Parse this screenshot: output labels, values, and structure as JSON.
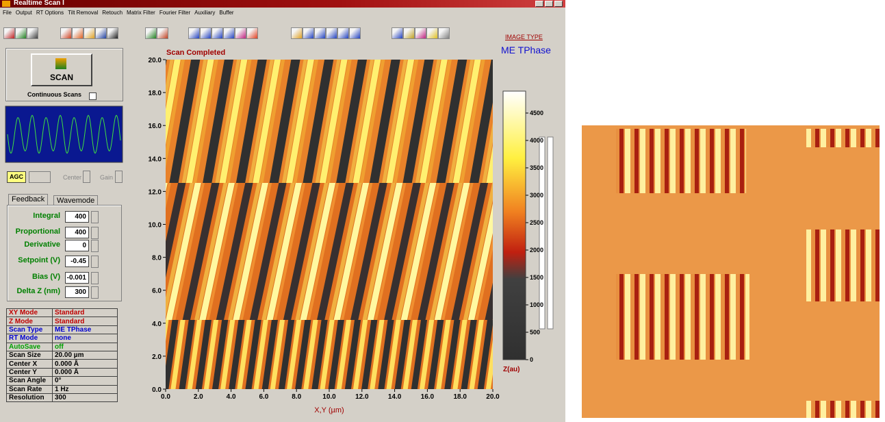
{
  "window": {
    "title": "Realtime Scan I",
    "menu": [
      "File",
      "Output",
      "RT Options",
      "Tilt Removal",
      "Retouch",
      "Matrix Filter",
      "Fourier Filter",
      "Auxiliary",
      "Buffer"
    ]
  },
  "toolbar": {
    "image_type_label": "IMAGE TYPE",
    "image_type": "ME TPhase"
  },
  "scan_panel": {
    "button": "SCAN",
    "continuous": "Continuous Scans"
  },
  "scope": {
    "agc": "AGC",
    "center": "Center",
    "gain": "Gain"
  },
  "feedback": {
    "tabs": [
      "Feedback",
      "Wavemode"
    ],
    "params": [
      {
        "label": "Integral",
        "value": "400"
      },
      {
        "label": "Proportional",
        "value": "400"
      },
      {
        "label": "Derivative",
        "value": "0"
      },
      {
        "label": "Setpoint (V)",
        "value": "-0.45"
      },
      {
        "label": "Bias (V)",
        "value": "-0.001"
      },
      {
        "label": "Delta Z (nm)",
        "value": "300"
      }
    ]
  },
  "status_table": {
    "rows": [
      [
        "XY Mode",
        "Standard"
      ],
      [
        "Z Mode",
        "Standard"
      ],
      [
        "Scan Type",
        "ME TPhase"
      ],
      [
        "RT Mode",
        "none"
      ],
      [
        "AutoSave",
        "off"
      ],
      [
        "Scan Size",
        "20.00 µm"
      ],
      [
        "Center X",
        "0.000  Å"
      ],
      [
        "Center Y",
        "0.000  Å"
      ],
      [
        "Scan Angle",
        "0°"
      ],
      [
        "Scan Rate",
        "1 Hz"
      ],
      [
        "Resolution",
        "300"
      ]
    ]
  },
  "chart_data": {
    "type": "heatmap",
    "title": "Scan Completed",
    "x_label": "X,Y (µm)",
    "xlim": [
      0,
      20
    ],
    "ylim": [
      0,
      20
    ],
    "xticks": [
      {
        "value": 0,
        "label": "0.0"
      },
      {
        "value": 2,
        "label": "2.0"
      },
      {
        "value": 4,
        "label": "4.0"
      },
      {
        "value": 6,
        "label": "6.0"
      },
      {
        "value": 8,
        "label": "8.0"
      },
      {
        "value": 10,
        "label": "10.0"
      },
      {
        "value": 12,
        "label": "12.0"
      },
      {
        "value": 14,
        "label": "14.0"
      },
      {
        "value": 16,
        "label": "16.0"
      },
      {
        "value": 18,
        "label": "18.0"
      },
      {
        "value": 20,
        "label": "20.0"
      }
    ],
    "yticks": [
      {
        "value": 0,
        "label": "0.0"
      },
      {
        "value": 2,
        "label": "2.0"
      },
      {
        "value": 4,
        "label": "4.0"
      },
      {
        "value": 6,
        "label": "6.0"
      },
      {
        "value": 8,
        "label": "8.0"
      },
      {
        "value": 10,
        "label": "10.0"
      },
      {
        "value": 12,
        "label": "12.0"
      },
      {
        "value": 14,
        "label": "14.0"
      },
      {
        "value": 16,
        "label": "16.0"
      },
      {
        "value": 18,
        "label": "18.0"
      },
      {
        "value": 20,
        "label": "20.0"
      }
    ],
    "colorbar": {
      "label": "Z(au)",
      "lim": [
        0,
        4900
      ],
      "ticks": [
        0,
        500,
        1000,
        1500,
        2000,
        2500,
        3000,
        3500,
        4000,
        4500
      ]
    }
  }
}
